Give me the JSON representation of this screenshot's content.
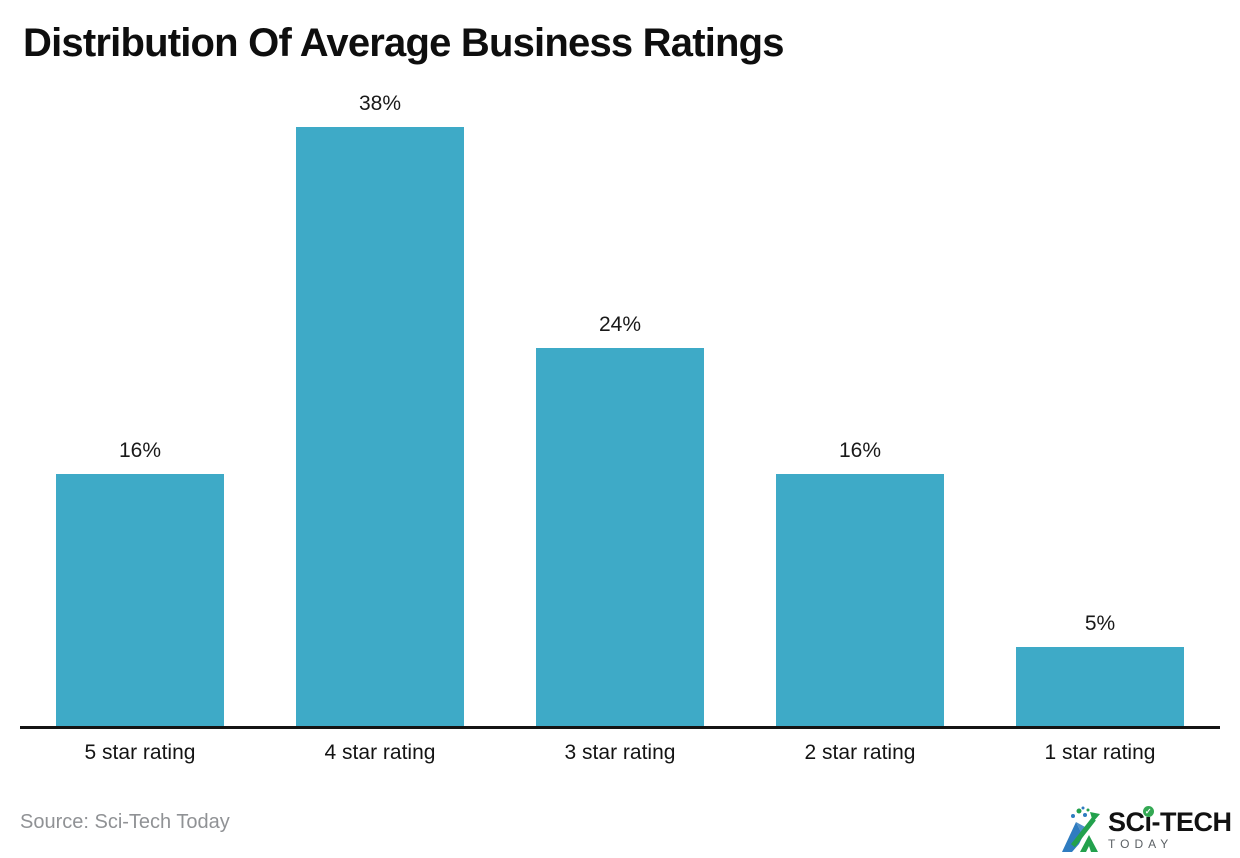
{
  "title": "Distribution Of Average Business Ratings",
  "source": "Source: Sci-Tech Today",
  "logo": {
    "part1": "SC",
    "part2": "i",
    "part3": "-TECH",
    "tagline": "TODAY",
    "check_icon": "✓"
  },
  "colors": {
    "bar": "#3EAAC7",
    "axis": "#141414",
    "title_text": "#0e0e0e",
    "label_text": "#191919",
    "source_text": "#909295",
    "logo_blue": "#2F7CC0",
    "logo_green": "#23A14D",
    "logo_check_green": "#34A853"
  },
  "chart_data": {
    "type": "bar",
    "title": "Distribution Of Average Business Ratings",
    "categories": [
      "5 star rating",
      "4 star rating",
      "3 star rating",
      "2 star rating",
      "1 star rating"
    ],
    "values": [
      16,
      38,
      24,
      16,
      5
    ],
    "value_labels": [
      "16%",
      "38%",
      "24%",
      "16%",
      "5%"
    ],
    "xlabel": "",
    "ylabel": "",
    "ylim": [
      0,
      40
    ],
    "grid": false,
    "legend": false,
    "bar_color": "#3EAAC7",
    "value_labels_position": "above-bars",
    "orientation": "vertical"
  }
}
